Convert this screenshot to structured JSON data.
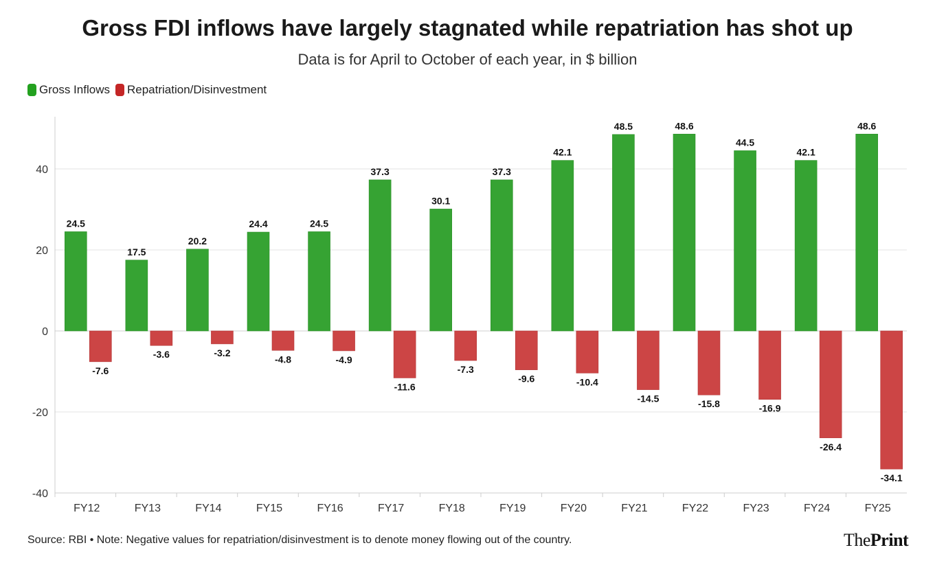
{
  "chart_data": {
    "type": "bar",
    "title": "Gross FDI inflows have largely stagnated while repatriation has shot up",
    "subtitle": "Data is for April to October of each year, in $ billion",
    "categories": [
      "FY12",
      "FY13",
      "FY14",
      "FY15",
      "FY16",
      "FY17",
      "FY18",
      "FY19",
      "FY20",
      "FY21",
      "FY22",
      "FY23",
      "FY24",
      "FY25"
    ],
    "series": [
      {
        "name": "Gross Inflows",
        "color": "#36a333",
        "values": [
          24.5,
          17.5,
          20.2,
          24.4,
          24.5,
          37.3,
          30.1,
          37.3,
          42.1,
          48.5,
          48.6,
          44.5,
          42.1,
          48.6
        ]
      },
      {
        "name": "Repatriation/Disinvestment",
        "color": "#cc4545",
        "values": [
          -7.6,
          -3.6,
          -3.2,
          -4.8,
          -4.9,
          -11.6,
          -7.3,
          -9.6,
          -10.4,
          -14.5,
          -15.8,
          -16.9,
          -26.4,
          -34.1
        ]
      }
    ],
    "yticks": [
      "40",
      "20",
      "0",
      "-20",
      "-40"
    ],
    "ylim": [
      -40,
      53
    ],
    "grid": true,
    "legend": "top-left",
    "source": "Source: RBI • Note: Negative values for repatriation/disinvestment is to denote money flowing out of the country."
  },
  "logo": {
    "part1": "The",
    "part2": "Print"
  }
}
